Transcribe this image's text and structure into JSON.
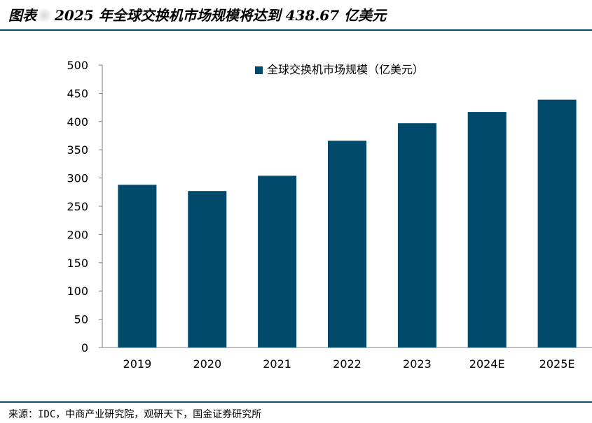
{
  "header": {
    "title_prefix": "图表",
    "title_main": "2025 年全球交换机市场规模将达到 438.67 亿美元"
  },
  "colors": {
    "bar": "#014a6c",
    "rule": "#0e4a6e",
    "axis": "#7f7f7f"
  },
  "chart_data": {
    "type": "bar",
    "title": "",
    "xlabel": "",
    "ylabel": "",
    "categories": [
      "2019",
      "2020",
      "2021",
      "2022",
      "2023",
      "2024E",
      "2025E"
    ],
    "series": [
      {
        "name": "全球交换机市场规模（亿美元）",
        "values": [
          288,
          277,
          304,
          366,
          397,
          417,
          438.67
        ]
      }
    ],
    "ylim": [
      0,
      500
    ],
    "yticks": [
      0,
      50,
      100,
      150,
      200,
      250,
      300,
      350,
      400,
      450,
      500
    ],
    "grid": false,
    "legend_position": "top-center"
  },
  "footer": {
    "source": "来源：IDC，中商产业研究院，观研天下，国金证券研究所"
  }
}
